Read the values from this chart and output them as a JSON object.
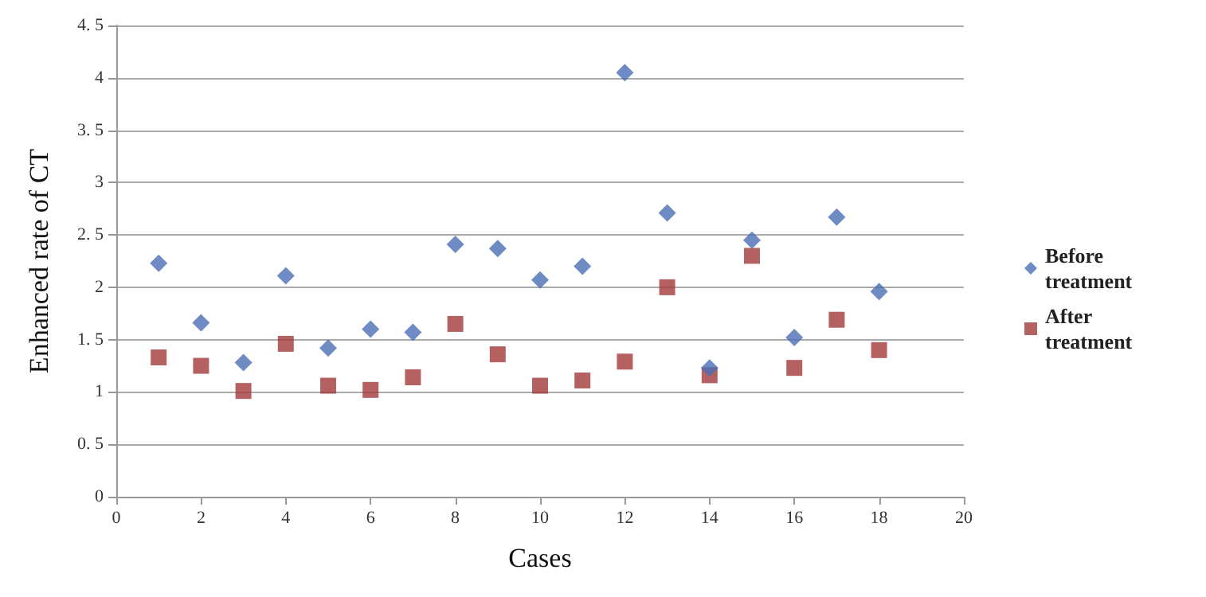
{
  "chart_data": {
    "type": "scatter",
    "xlabel": "Cases",
    "ylabel": "Enhanced rate of CT",
    "x": [
      1,
      2,
      3,
      4,
      5,
      6,
      7,
      8,
      9,
      10,
      11,
      12,
      13,
      14,
      15,
      16,
      17,
      18
    ],
    "series": [
      {
        "name": "Before treatment",
        "color": "#4a6eb5",
        "marker": "diamond",
        "values": [
          2.23,
          1.66,
          1.28,
          2.11,
          1.42,
          1.6,
          1.57,
          2.41,
          2.37,
          2.07,
          2.2,
          4.05,
          2.71,
          1.23,
          2.45,
          1.52,
          2.67,
          1.96
        ]
      },
      {
        "name": "After treatment",
        "color": "#a33a3a",
        "marker": "square",
        "values": [
          1.33,
          1.25,
          1.01,
          1.46,
          1.06,
          1.02,
          1.14,
          1.65,
          1.36,
          1.06,
          1.11,
          1.29,
          2.0,
          1.16,
          2.3,
          1.23,
          1.69,
          1.4
        ]
      }
    ],
    "xlim": [
      0,
      20
    ],
    "xticks": [
      0,
      2,
      4,
      6,
      8,
      10,
      12,
      14,
      16,
      18,
      20
    ],
    "ylim": [
      0,
      4.5
    ],
    "yticks": [
      0,
      {
        "value": 0.5,
        "label": "0. 5"
      },
      1,
      {
        "value": 1.5,
        "label": "1. 5"
      },
      2,
      {
        "value": 2.5,
        "label": "2. 5"
      },
      3,
      {
        "value": 3.5,
        "label": "3. 5"
      },
      4,
      {
        "value": 4.5,
        "label": "4. 5"
      }
    ],
    "grid": "y",
    "legend": "right"
  }
}
